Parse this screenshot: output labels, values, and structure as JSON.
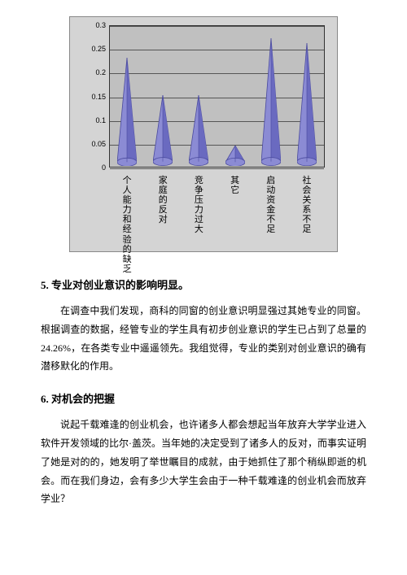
{
  "chart": {
    "type": "3d-cone",
    "background_color": "#d4d4d4",
    "plot_bg_color": "#c0c0c0",
    "grid_color": "#555555",
    "cone_fill": "#8b8bd4",
    "cone_stroke": "#4a4a9e",
    "ylim": [
      0,
      0.3
    ],
    "ytick_step": 0.05,
    "yticks": [
      "0",
      "0.05",
      "0.1",
      "0.15",
      "0.2",
      "0.25",
      "0.3"
    ],
    "categories": [
      "个人能力和经验的缺乏",
      "家庭的反对",
      "竞争压力过大",
      "其它",
      "启动资金不足",
      "社会关系不足"
    ],
    "values": [
      0.22,
      0.14,
      0.14,
      0.035,
      0.26,
      0.25
    ],
    "label_fontsize": 11
  },
  "section5": {
    "heading": "5. 专业对创业意识的影响明显。",
    "body": "在调查中我们发现，商科的同窗的创业意识明显强过其她专业的同窗。根据调查的数据，经管专业的学生具有初步创业意识的学生已占到了总量的24.26%，在各类专业中遥遥领先。我组觉得，专业的类别对创业意识的确有潜移默化的作用。"
  },
  "section6": {
    "heading": "6. 对机会的把握",
    "body": "说起千载难逢的创业机会，也许诸多人都会想起当年放弃大学学业进入软件开发领域的比尔·盖茨。当年她的决定受到了诸多人的反对，而事实证明了她是对的的，她发明了举世瞩目的成就，由于她抓住了那个稍纵即逝的机会。而在我们身边，会有多少大学生会由于一种千载难逢的创业机会而放弃学业？"
  }
}
